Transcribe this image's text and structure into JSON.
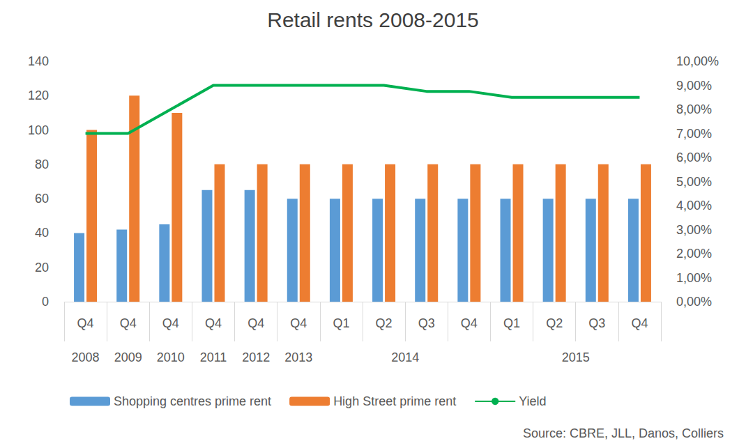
{
  "chart_data": {
    "type": "bar",
    "title": "Retail rents 2008-2015",
    "categories": [
      "Q4",
      "Q4",
      "Q4",
      "Q4",
      "Q4",
      "Q4",
      "Q1",
      "Q2",
      "Q3",
      "Q4",
      "Q1",
      "Q2",
      "Q3",
      "Q4"
    ],
    "category_groups": [
      "2008",
      "2009",
      "2010",
      "2011",
      "2012",
      "2013",
      "2014",
      "2014",
      "2014",
      "2014",
      "2015",
      "2015",
      "2015",
      "2015"
    ],
    "series": [
      {
        "name": "Shopping centres prime rent",
        "color": "#5B9BD5",
        "values": [
          40,
          42,
          45,
          65,
          65,
          60,
          60,
          60,
          60,
          60,
          60,
          60,
          60,
          60
        ]
      },
      {
        "name": "High Street prime rent",
        "color": "#ED7D31",
        "values": [
          100,
          120,
          110,
          80,
          80,
          80,
          80,
          80,
          80,
          80,
          80,
          80,
          80,
          80
        ]
      },
      {
        "name": "Yield",
        "type": "line",
        "axis": "y2",
        "color": "#00B050",
        "values": [
          7.0,
          7.0,
          8.0,
          9.0,
          9.0,
          9.0,
          9.0,
          9.0,
          8.75,
          8.75,
          8.5,
          8.5,
          8.5,
          8.5
        ]
      }
    ],
    "ylim": [
      0,
      140
    ],
    "yticks": [
      0,
      20,
      40,
      60,
      80,
      100,
      120,
      140
    ],
    "y2lim": [
      0,
      10
    ],
    "y2ticks": [
      {
        "value": 0,
        "label": "0,00%"
      },
      {
        "value": 1,
        "label": "1,00%"
      },
      {
        "value": 2,
        "label": "2,00%"
      },
      {
        "value": 3,
        "label": "3,00%"
      },
      {
        "value": 4,
        "label": "4,00%"
      },
      {
        "value": 5,
        "label": "5,00%"
      },
      {
        "value": 6,
        "label": "6,00%"
      },
      {
        "value": 7,
        "label": "7,00%"
      },
      {
        "value": 8,
        "label": "8,00%"
      },
      {
        "value": 9,
        "label": "9,00%"
      },
      {
        "value": 10,
        "label": "10,00%"
      }
    ],
    "grid": false,
    "legend": "bottom",
    "annotations": [
      "Source: CBRE, JLL, Danos, Colliers"
    ]
  }
}
